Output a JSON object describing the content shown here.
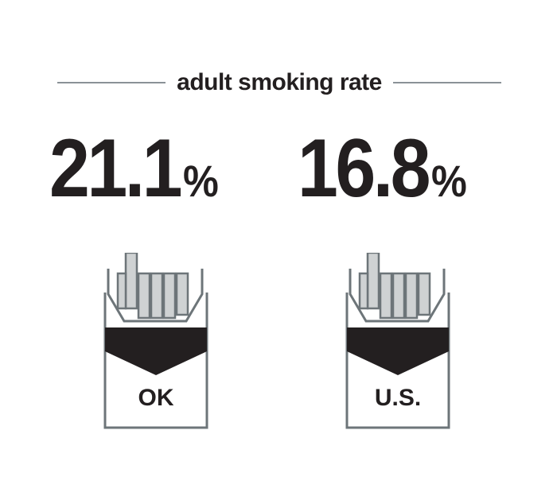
{
  "title": "adult smoking rate",
  "stats": [
    {
      "value": "21.1",
      "unit": "%",
      "region": "OK"
    },
    {
      "value": "16.8",
      "unit": "%",
      "region": "U.S."
    }
  ],
  "colors": {
    "text": "#231f20",
    "rule": "#8a9297",
    "pack_outline": "#6d7579",
    "cigarette_fill": "#cfd2d3",
    "band": "#231f20"
  },
  "icons": [
    "cigarette-pack-icon",
    "cigarette-pack-icon"
  ]
}
